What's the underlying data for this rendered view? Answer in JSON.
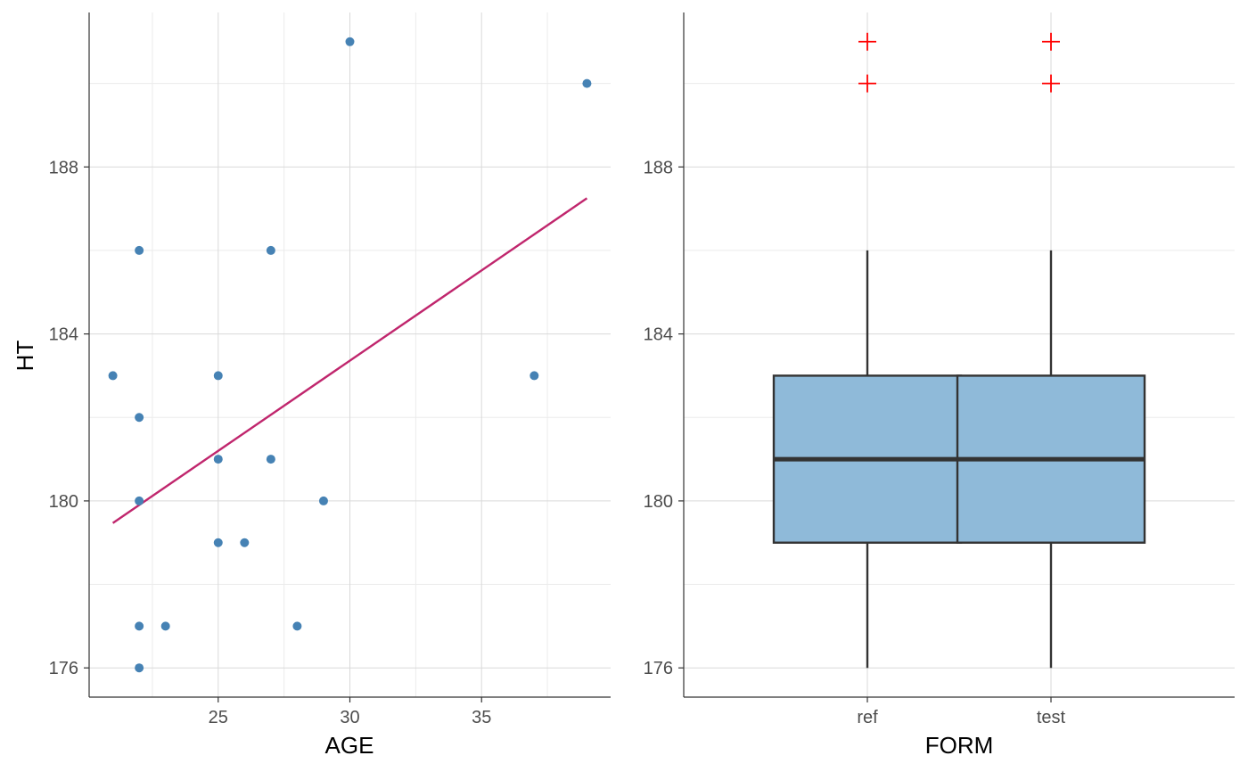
{
  "chart_data": [
    {
      "type": "scatter",
      "xlabel": "AGE",
      "ylabel": "HT",
      "xlim": [
        20.1,
        39.9
      ],
      "ylim": [
        175.3,
        191.7
      ],
      "x_ticks": [
        25,
        30,
        35
      ],
      "y_ticks": [
        176,
        180,
        184,
        188
      ],
      "grid": true,
      "point_color": "#4682B4",
      "line_color": "#C0266D",
      "points": [
        {
          "x": 21,
          "y": 183
        },
        {
          "x": 22,
          "y": 186
        },
        {
          "x": 22,
          "y": 182
        },
        {
          "x": 22,
          "y": 180
        },
        {
          "x": 22,
          "y": 177
        },
        {
          "x": 22,
          "y": 176
        },
        {
          "x": 23,
          "y": 177
        },
        {
          "x": 25,
          "y": 183
        },
        {
          "x": 25,
          "y": 181
        },
        {
          "x": 25,
          "y": 179
        },
        {
          "x": 26,
          "y": 179
        },
        {
          "x": 27,
          "y": 186
        },
        {
          "x": 27,
          "y": 181
        },
        {
          "x": 28,
          "y": 177
        },
        {
          "x": 29,
          "y": 180
        },
        {
          "x": 30,
          "y": 191
        },
        {
          "x": 37,
          "y": 183
        },
        {
          "x": 39,
          "y": 190
        }
      ],
      "trend_line": {
        "x": [
          21,
          39
        ],
        "y": [
          179.47,
          187.25
        ]
      }
    },
    {
      "type": "box",
      "xlabel": "FORM",
      "ylabel": "",
      "categories": [
        "ref",
        "test"
      ],
      "ylim": [
        175.3,
        191.7
      ],
      "y_ticks": [
        176,
        180,
        184,
        188
      ],
      "grid": true,
      "box_fill": "#8FBAD9",
      "box_stroke": "#333333",
      "outlier_color": "#FF0000",
      "boxes": [
        {
          "category": "ref",
          "whisker_low": 176,
          "q1": 179,
          "median": 181,
          "q3": 183,
          "whisker_high": 186,
          "outliers": [
            190,
            191
          ]
        },
        {
          "category": "test",
          "whisker_low": 176,
          "q1": 179,
          "median": 181,
          "q3": 183,
          "whisker_high": 186,
          "outliers": [
            190,
            191
          ]
        }
      ]
    }
  ]
}
